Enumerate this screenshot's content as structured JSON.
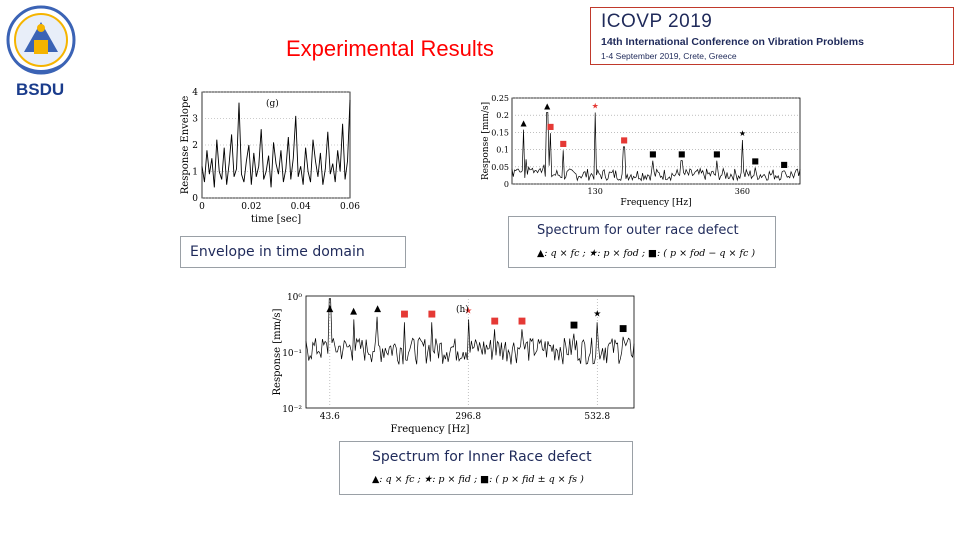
{
  "header": {
    "title": "Experimental Results",
    "logo_text": "BSDU",
    "conference": {
      "name": "ICOVP 2019",
      "subtitle": "14th International Conference on Vibration Problems",
      "dates": "1-4 September 2019, Crete, Greece"
    }
  },
  "captions": {
    "envelope": "Envelope in time domain",
    "outer": "Spectrum for outer race defect",
    "outer_legend": "▲: q × fc ;  ★: p × fod ;  ■: ( p × fod − q × fc )",
    "inner": "Spectrum for Inner Race defect",
    "inner_legend": "▲: q × fc ;  ★: p × fid ;  ■: ( p × fid ± q × fs )"
  },
  "colors": {
    "title": "#ff0000",
    "caption_text": "#1f2a5a",
    "marker_red": "#e53935"
  },
  "chart_data": [
    {
      "type": "line",
      "panel_label": "(g)",
      "title": "",
      "xlabel": "time [sec]",
      "ylabel": "Response Envelope",
      "xlim": [
        0,
        0.06
      ],
      "ylim": [
        0,
        4
      ],
      "x_ticks": [
        "0",
        "0.02",
        "0.04",
        "0.06"
      ],
      "y_ticks": [
        "0",
        "1",
        "2",
        "3",
        "4"
      ],
      "series": [
        {
          "name": "envelope",
          "values": [
            1.2,
            0.6,
            1.8,
            0.9,
            1.5,
            0.4,
            2.2,
            1.0,
            0.7,
            1.9,
            0.5,
            1.3,
            2.4,
            0.8,
            1.1,
            3.6,
            0.9,
            0.6,
            1.4,
            2.0,
            0.5,
            1.7,
            0.8,
            1.2,
            2.6,
            0.7,
            1.0,
            1.6,
            0.4,
            2.1,
            1.3,
            0.9,
            1.8,
            0.6,
            1.1,
            2.3,
            0.7,
            1.5,
            3.1,
            0.8,
            1.2,
            0.5,
            1.9,
            1.0,
            0.6,
            2.2,
            1.4,
            0.8,
            1.7,
            0.5,
            1.1,
            2.5,
            0.9,
            1.3,
            0.6,
            1.8,
            1.0,
            2.8,
            0.7,
            1.4,
            3.7
          ]
        }
      ]
    },
    {
      "type": "line",
      "panel_label": "",
      "title": "",
      "xlabel": "Frequency [Hz]",
      "ylabel": "Response [mm/s]",
      "xlim": [
        0,
        450
      ],
      "ylim": [
        0,
        0.25
      ],
      "x_ticks": [
        "130",
        "360"
      ],
      "y_ticks": [
        "0",
        "0.05",
        "0.1",
        "0.15",
        "0.2",
        "0.25"
      ],
      "markers": [
        {
          "symbol": "▲",
          "x": 18,
          "y": 0.17,
          "color": "#000000"
        },
        {
          "symbol": "▲",
          "x": 55,
          "y": 0.22,
          "color": "#000000"
        },
        {
          "symbol": "★",
          "x": 130,
          "y": 0.22,
          "color": "#e53935"
        },
        {
          "symbol": "★",
          "x": 360,
          "y": 0.14,
          "color": "#000000"
        },
        {
          "symbol": "■",
          "x": 60,
          "y": 0.16,
          "color": "#e53935"
        },
        {
          "symbol": "■",
          "x": 80,
          "y": 0.11,
          "color": "#e53935"
        },
        {
          "symbol": "■",
          "x": 175,
          "y": 0.12,
          "color": "#e53935"
        },
        {
          "symbol": "■",
          "x": 220,
          "y": 0.08,
          "color": "#000000"
        },
        {
          "symbol": "■",
          "x": 265,
          "y": 0.08,
          "color": "#000000"
        },
        {
          "symbol": "■",
          "x": 320,
          "y": 0.08,
          "color": "#000000"
        },
        {
          "symbol": "■",
          "x": 380,
          "y": 0.06,
          "color": "#000000"
        },
        {
          "symbol": "■",
          "x": 425,
          "y": 0.05,
          "color": "#000000"
        }
      ]
    },
    {
      "type": "line",
      "panel_label": "(h)",
      "title": "",
      "xlabel": "Frequency [Hz]",
      "ylabel": "Response [mm/s]",
      "yscale": "log",
      "xlim": [
        0,
        600
      ],
      "ylim": [
        0.01,
        1
      ],
      "x_ticks": [
        "43.6",
        "296.8",
        "532.8"
      ],
      "y_ticks": [
        "10⁰",
        "10⁻¹",
        "10⁻²"
      ],
      "markers": [
        {
          "symbol": "▲",
          "x": 43.6,
          "y": 0.5,
          "color": "#000000"
        },
        {
          "symbol": "▲",
          "x": 87,
          "y": 0.45,
          "color": "#000000"
        },
        {
          "symbol": "▲",
          "x": 131,
          "y": 0.5,
          "color": "#000000"
        },
        {
          "symbol": "■",
          "x": 180,
          "y": 0.4,
          "color": "#e53935"
        },
        {
          "symbol": "■",
          "x": 230,
          "y": 0.4,
          "color": "#e53935"
        },
        {
          "symbol": "★",
          "x": 296.8,
          "y": 0.45,
          "color": "#e53935"
        },
        {
          "symbol": "■",
          "x": 345,
          "y": 0.3,
          "color": "#e53935"
        },
        {
          "symbol": "■",
          "x": 395,
          "y": 0.3,
          "color": "#e53935"
        },
        {
          "symbol": "★",
          "x": 532.8,
          "y": 0.4,
          "color": "#000000"
        },
        {
          "symbol": "■",
          "x": 490,
          "y": 0.25,
          "color": "#000000"
        },
        {
          "symbol": "■",
          "x": 580,
          "y": 0.22,
          "color": "#000000"
        }
      ]
    }
  ]
}
